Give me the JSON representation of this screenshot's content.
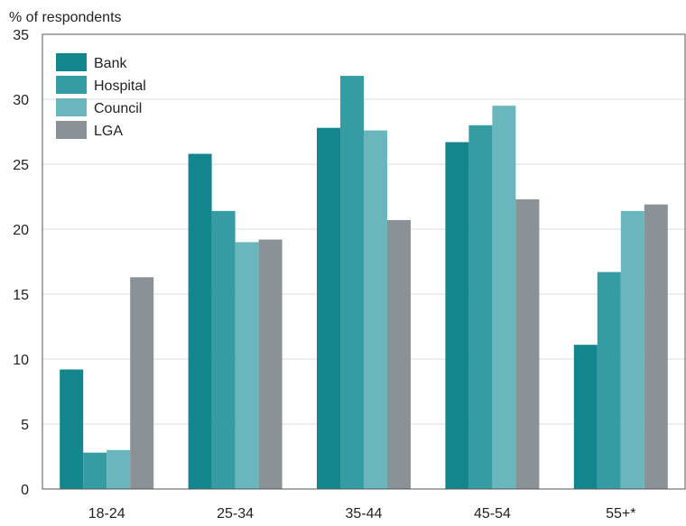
{
  "chart_data": {
    "type": "bar",
    "title": "",
    "xlabel": "",
    "ylabel": "% of respondents",
    "ylim": [
      0,
      35
    ],
    "yticks": [
      0,
      5,
      10,
      15,
      20,
      25,
      30,
      35
    ],
    "grid": true,
    "legend_position": "top-left",
    "categories": [
      "18-24",
      "25-34",
      "35-44",
      "45-54",
      "55+*"
    ],
    "series": [
      {
        "name": "Bank",
        "color": "#12868C",
        "values": [
          9.2,
          25.8,
          27.8,
          26.7,
          11.1
        ]
      },
      {
        "name": "Hospital",
        "color": "#359CA4",
        "values": [
          2.8,
          21.4,
          31.8,
          28.0,
          16.7
        ]
      },
      {
        "name": "Council",
        "color": "#69B7BC",
        "values": [
          3.0,
          19.0,
          27.6,
          29.5,
          21.4
        ]
      },
      {
        "name": "LGA",
        "color": "#8A9197",
        "values": [
          16.3,
          19.2,
          20.7,
          22.3,
          21.9
        ]
      }
    ]
  }
}
